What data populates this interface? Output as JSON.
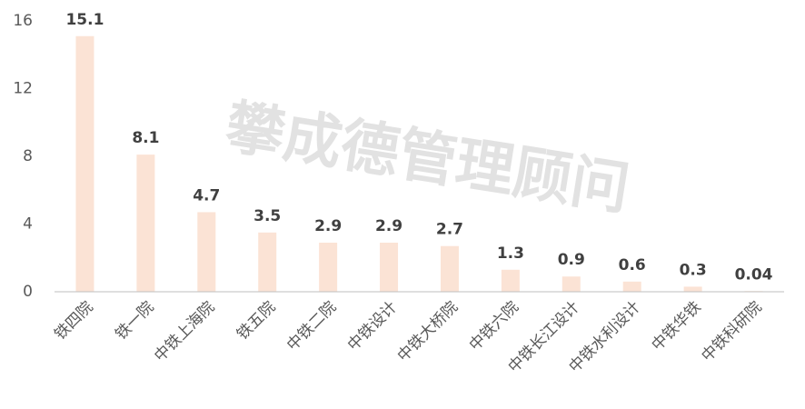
{
  "chart_data": {
    "type": "bar",
    "watermark": "攀成德管理顾问",
    "categories": [
      "铁四院",
      "铁一院",
      "中铁上海院",
      "铁五院",
      "中铁二院",
      "中铁设计",
      "中铁大桥院",
      "中铁六院",
      "中铁长江设计",
      "中铁水利设计",
      "中铁华铁",
      "中铁科研院"
    ],
    "values": [
      15.1,
      8.1,
      4.7,
      3.5,
      2.9,
      2.9,
      2.7,
      1.3,
      0.9,
      0.6,
      0.3,
      0.04
    ],
    "color": "#fbe3d5",
    "ylim": [
      0,
      16
    ],
    "yticks": [
      0,
      4,
      8,
      12,
      16
    ],
    "grid": false
  }
}
